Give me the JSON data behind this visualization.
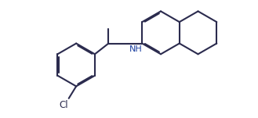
{
  "background": "#ffffff",
  "bond_color": "#2b2b4e",
  "nh_color": "#1a3fa0",
  "lw": 1.5,
  "dbo": 0.055,
  "figsize": [
    3.29,
    1.51
  ],
  "dpi": 100,
  "cl_text": "Cl",
  "nh_text": "NH"
}
